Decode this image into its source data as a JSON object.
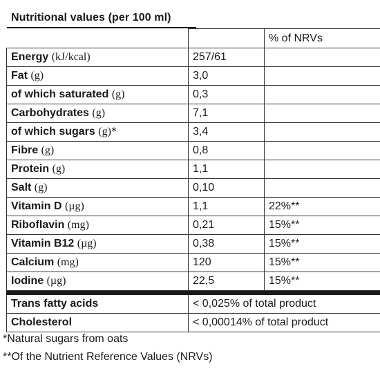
{
  "title": "Nutritional values (per 100 ml)",
  "nrv_header": "% of NRVs",
  "rows": [
    {
      "name": "Energy",
      "unit": "(kJ/kcal)",
      "value": "257/61",
      "nrv": ""
    },
    {
      "name": "Fat",
      "unit": "(g)",
      "value": "3,0",
      "nrv": ""
    },
    {
      "name": "of which saturated",
      "unit": "(g)",
      "value": "0,3",
      "nrv": ""
    },
    {
      "name": "Carbohydrates",
      "unit": "(g)",
      "value": "7,1",
      "nrv": ""
    },
    {
      "name": "of which sugars",
      "unit": "(g)*",
      "value": "3,4",
      "nrv": ""
    },
    {
      "name": "Fibre",
      "unit": "(g)",
      "value": "0,8",
      "nrv": ""
    },
    {
      "name": "Protein",
      "unit": "(g)",
      "value": "1,1",
      "nrv": ""
    },
    {
      "name": "Salt",
      "unit": "(g)",
      "value": "0,10",
      "nrv": ""
    },
    {
      "name": "Vitamin D",
      "unit": "(µg)",
      "value": "1,1",
      "nrv": "22%**"
    },
    {
      "name": "Riboflavin",
      "unit": "(mg)",
      "value": "0,21",
      "nrv": "15%**"
    },
    {
      "name": "Vitamin B12",
      "unit": "(µg)",
      "value": "0,38",
      "nrv": "15%**"
    },
    {
      "name": "Calcium",
      "unit": "(mg)",
      "value": "120",
      "nrv": "15%**"
    },
    {
      "name": "Iodine",
      "unit": "(µg)",
      "value": "22,5",
      "nrv": "15%**"
    }
  ],
  "extra_rows": [
    {
      "name": "Trans fatty acids",
      "value": "< 0,025% of total product"
    },
    {
      "name": "Cholesterol",
      "value": "< 0,00014% of total product"
    }
  ],
  "footnotes": {
    "sugars": "*Natural sugars from oats",
    "nrv": "**Of the Nutrient Reference Values (NRVs)"
  }
}
